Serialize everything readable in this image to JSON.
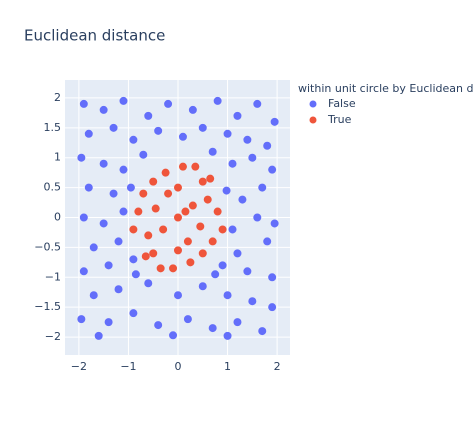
{
  "chart_data": {
    "type": "scatter",
    "title": "Euclidean distance",
    "legend_title": "within unit circle by Euclidean distance",
    "legend": "right",
    "grid": true,
    "xlim": [
      -2.28,
      2.26
    ],
    "ylim": [
      -2.3,
      2.3
    ],
    "xticks": [
      {
        "value": -2,
        "label": "−2"
      },
      {
        "value": -1,
        "label": "−1"
      },
      0,
      1,
      2
    ],
    "yticks": [
      {
        "value": -2,
        "label": "−2"
      },
      {
        "value": -1.5,
        "label": "−1.5"
      },
      {
        "value": -1,
        "label": "−1"
      },
      {
        "value": -0.5,
        "label": "−0.5"
      },
      0,
      0.5,
      1,
      1.5,
      2
    ],
    "series": [
      {
        "name": "False",
        "color": "#636efa",
        "x": [
          -1.9,
          -1.5,
          -1.1,
          -0.6,
          -0.2,
          0.3,
          0.8,
          1.2,
          1.6,
          1.95,
          -1.8,
          -1.3,
          -0.9,
          -0.4,
          0.1,
          0.5,
          1.0,
          1.4,
          1.8,
          -1.95,
          -1.5,
          -1.1,
          1.1,
          1.5,
          1.9,
          -1.8,
          -1.3,
          1.3,
          1.7,
          -1.9,
          -1.5,
          -1.1,
          1.1,
          1.6,
          1.95,
          -1.7,
          -1.2,
          1.2,
          1.8,
          -1.9,
          -1.4,
          -0.9,
          0.9,
          1.4,
          1.9,
          -1.7,
          -1.2,
          -0.6,
          0.0,
          0.5,
          1.0,
          1.5,
          1.9,
          -1.95,
          -1.4,
          -0.9,
          -0.4,
          0.2,
          0.7,
          1.2,
          1.7,
          -1.6,
          -0.1,
          1.0,
          -0.7,
          0.7,
          -0.95,
          0.98,
          -0.85,
          0.75
        ],
        "y": [
          1.9,
          1.8,
          1.95,
          1.7,
          1.9,
          1.8,
          1.95,
          1.7,
          1.9,
          1.6,
          1.4,
          1.5,
          1.3,
          1.45,
          1.35,
          1.5,
          1.4,
          1.3,
          1.2,
          1.0,
          0.9,
          0.8,
          0.9,
          1.0,
          0.8,
          0.5,
          0.4,
          0.3,
          0.5,
          0.0,
          -0.1,
          0.1,
          -0.2,
          0.0,
          -0.1,
          -0.5,
          -0.4,
          -0.6,
          -0.4,
          -0.9,
          -0.8,
          -0.7,
          -0.8,
          -0.9,
          -1.0,
          -1.3,
          -1.2,
          -1.1,
          -1.3,
          -1.15,
          -1.3,
          -1.4,
          -1.5,
          -1.7,
          -1.75,
          -1.6,
          -1.8,
          -1.7,
          -1.85,
          -1.75,
          -1.9,
          -1.98,
          -1.97,
          -1.98,
          1.05,
          1.1,
          0.5,
          0.45,
          -0.95,
          -0.95
        ]
      },
      {
        "name": "True",
        "color": "#ef553b",
        "x": [
          0,
          0.3,
          -0.3,
          0.5,
          -0.5,
          0.5,
          -0.5,
          0.8,
          -0.8,
          0.1,
          -0.1,
          0.6,
          -0.6,
          0.2,
          -0.2,
          0.7,
          -0.7,
          0.35,
          -0.35,
          0.9,
          -0.9,
          0.0,
          0.0,
          0.45,
          -0.45,
          0.25,
          -0.25,
          0.65,
          -0.65,
          0.15
        ],
        "y": [
          0,
          0.2,
          -0.2,
          0.6,
          0.6,
          -0.6,
          -0.6,
          0.1,
          0.1,
          0.85,
          -0.85,
          0.3,
          -0.3,
          -0.4,
          0.4,
          -0.4,
          0.4,
          0.85,
          -0.85,
          -0.2,
          -0.2,
          0.5,
          -0.55,
          -0.15,
          0.15,
          -0.75,
          0.75,
          0.65,
          -0.65,
          0.1
        ]
      }
    ]
  }
}
